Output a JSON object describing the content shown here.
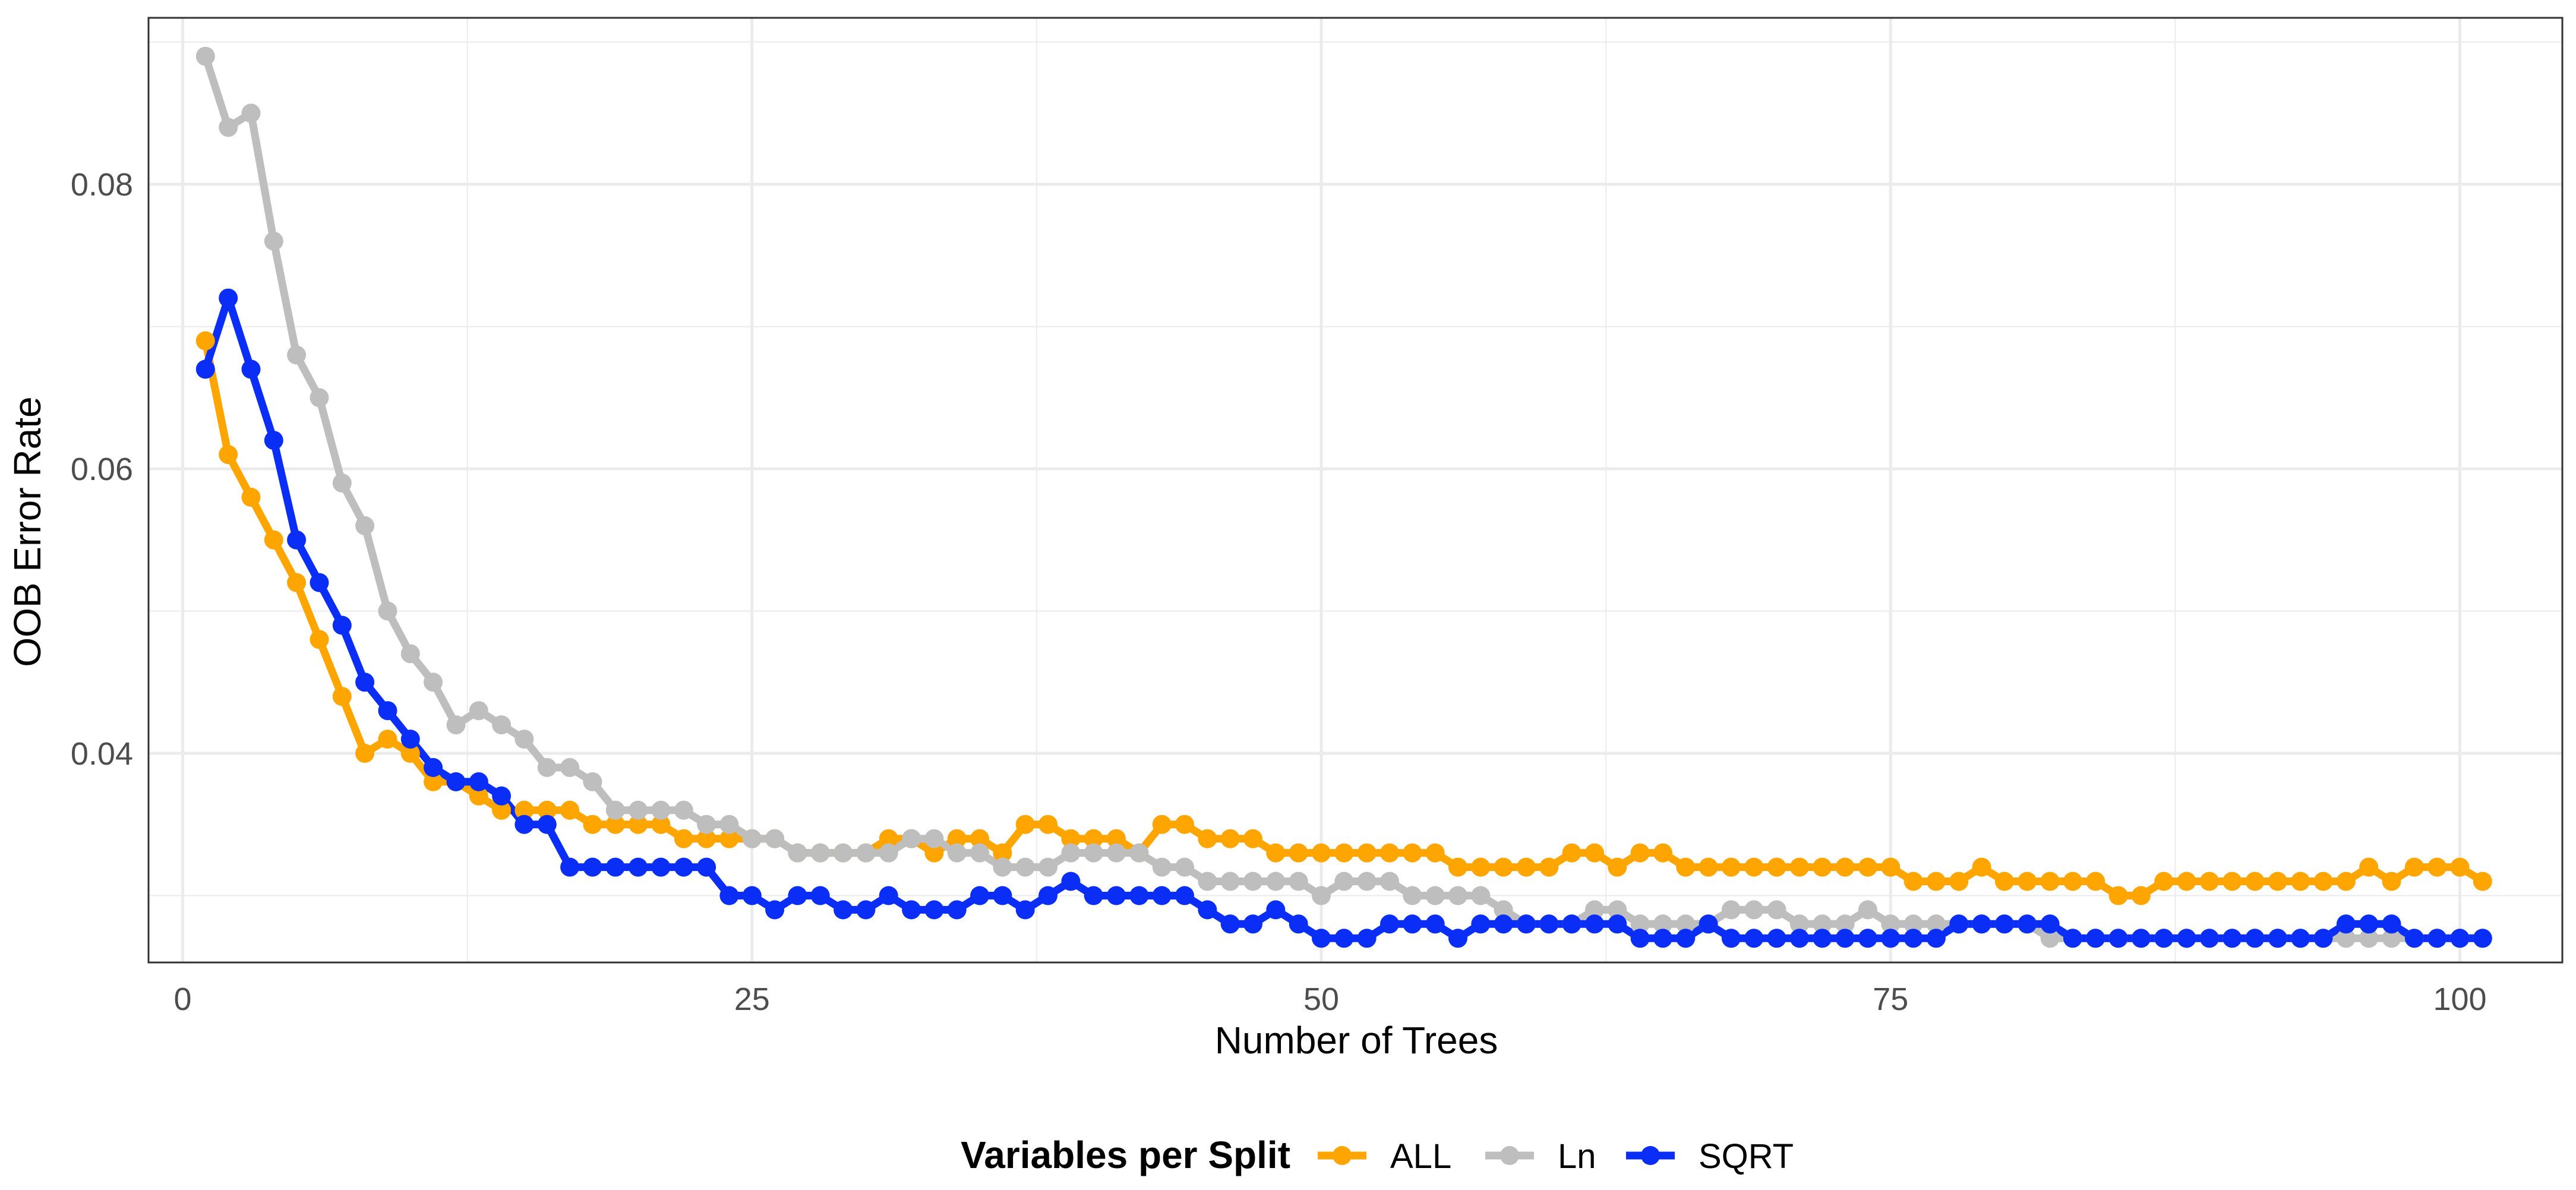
{
  "chart_data": {
    "type": "line",
    "title": "",
    "xlabel": "Number of Trees",
    "ylabel": "OOB Error Rate",
    "xlim": [
      -1.5,
      104.5
    ],
    "ylim": [
      0.0253,
      0.0917
    ],
    "x_ticks": [
      0,
      25,
      50,
      75,
      100
    ],
    "x_tick_labels": [
      "0",
      "25",
      "50",
      "75",
      "100"
    ],
    "y_ticks": [
      0.04,
      0.06,
      0.08
    ],
    "y_tick_labels": [
      "0.04",
      "0.06",
      "0.08"
    ],
    "grid": true,
    "legend": {
      "title": "Variables per Split",
      "position": "bottom"
    },
    "colors": {
      "ALL": "#FFA500",
      "Ln": "#BEBEBE",
      "SQRT": "#0A2EF5",
      "grid": "#EBEBEB",
      "panel_border": "#333333"
    },
    "series": [
      {
        "name": "ALL",
        "values": [
          0.069,
          0.061,
          0.058,
          0.055,
          0.052,
          0.048,
          0.044,
          0.04,
          0.041,
          0.04,
          0.038,
          0.038,
          0.037,
          0.036,
          0.036,
          0.036,
          0.036,
          0.035,
          0.035,
          0.035,
          0.035,
          0.034,
          0.034,
          0.034,
          0.034,
          0.034,
          0.033,
          0.033,
          0.033,
          0.033,
          0.034,
          0.034,
          0.033,
          0.034,
          0.034,
          0.033,
          0.035,
          0.035,
          0.034,
          0.034,
          0.034,
          0.033,
          0.035,
          0.035,
          0.034,
          0.034,
          0.034,
          0.033,
          0.033,
          0.033,
          0.033,
          0.033,
          0.033,
          0.033,
          0.033,
          0.032,
          0.032,
          0.032,
          0.032,
          0.032,
          0.033,
          0.033,
          0.032,
          0.033,
          0.033,
          0.032,
          0.032,
          0.032,
          0.032,
          0.032,
          0.032,
          0.032,
          0.032,
          0.032,
          0.032,
          0.031,
          0.031,
          0.031,
          0.032,
          0.031,
          0.031,
          0.031,
          0.031,
          0.031,
          0.03,
          0.03,
          0.031,
          0.031,
          0.031,
          0.031,
          0.031,
          0.031,
          0.031,
          0.031,
          0.031,
          0.032,
          0.031,
          0.032,
          0.032,
          0.032,
          0.031
        ]
      },
      {
        "name": "Ln",
        "values": [
          0.089,
          0.084,
          0.085,
          0.076,
          0.068,
          0.065,
          0.059,
          0.056,
          0.05,
          0.047,
          0.045,
          0.042,
          0.043,
          0.042,
          0.041,
          0.039,
          0.039,
          0.038,
          0.036,
          0.036,
          0.036,
          0.036,
          0.035,
          0.035,
          0.034,
          0.034,
          0.033,
          0.033,
          0.033,
          0.033,
          0.033,
          0.034,
          0.034,
          0.033,
          0.033,
          0.032,
          0.032,
          0.032,
          0.033,
          0.033,
          0.033,
          0.033,
          0.032,
          0.032,
          0.031,
          0.031,
          0.031,
          0.031,
          0.031,
          0.03,
          0.031,
          0.031,
          0.031,
          0.03,
          0.03,
          0.03,
          0.03,
          0.029,
          0.028,
          0.028,
          0.028,
          0.029,
          0.029,
          0.028,
          0.028,
          0.028,
          0.028,
          0.029,
          0.029,
          0.029,
          0.028,
          0.028,
          0.028,
          0.029,
          0.028,
          0.028,
          0.028,
          0.028,
          0.028,
          0.028,
          0.028,
          0.027,
          0.027,
          0.027,
          0.027,
          0.027,
          0.027,
          0.027,
          0.027,
          0.027,
          0.027,
          0.027,
          0.027,
          0.027,
          0.027,
          0.027,
          0.027,
          0.027,
          0.027,
          0.027,
          0.027
        ]
      },
      {
        "name": "SQRT",
        "values": [
          0.067,
          0.072,
          0.067,
          0.062,
          0.055,
          0.052,
          0.049,
          0.045,
          0.043,
          0.041,
          0.039,
          0.038,
          0.038,
          0.037,
          0.035,
          0.035,
          0.032,
          0.032,
          0.032,
          0.032,
          0.032,
          0.032,
          0.032,
          0.03,
          0.03,
          0.029,
          0.03,
          0.03,
          0.029,
          0.029,
          0.03,
          0.029,
          0.029,
          0.029,
          0.03,
          0.03,
          0.029,
          0.03,
          0.031,
          0.03,
          0.03,
          0.03,
          0.03,
          0.03,
          0.029,
          0.028,
          0.028,
          0.029,
          0.028,
          0.027,
          0.027,
          0.027,
          0.028,
          0.028,
          0.028,
          0.027,
          0.028,
          0.028,
          0.028,
          0.028,
          0.028,
          0.028,
          0.028,
          0.027,
          0.027,
          0.027,
          0.028,
          0.027,
          0.027,
          0.027,
          0.027,
          0.027,
          0.027,
          0.027,
          0.027,
          0.027,
          0.027,
          0.028,
          0.028,
          0.028,
          0.028,
          0.028,
          0.027,
          0.027,
          0.027,
          0.027,
          0.027,
          0.027,
          0.027,
          0.027,
          0.027,
          0.027,
          0.027,
          0.027,
          0.028,
          0.028,
          0.028,
          0.027,
          0.027,
          0.027,
          0.027
        ]
      }
    ]
  }
}
